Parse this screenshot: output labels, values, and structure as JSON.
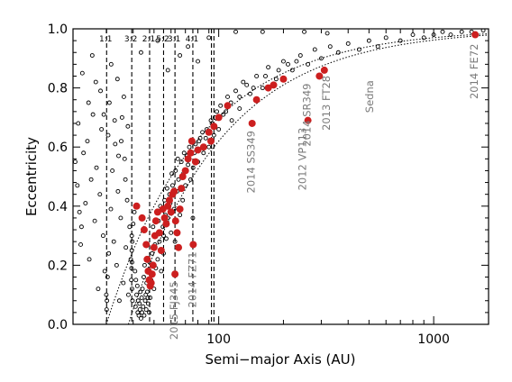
{
  "chart_data": {
    "type": "scatter",
    "title": "",
    "xlabel": "Semi−major Axis (AU)",
    "ylabel": "Eccentricity",
    "xscale": "log",
    "xlim": [
      21,
      1800
    ],
    "ylim": [
      0.0,
      1.0
    ],
    "xticks": [
      {
        "value": 100,
        "label": "100"
      },
      {
        "value": 1000,
        "label": "1000"
      }
    ],
    "yticks": [
      {
        "value": 0.0,
        "label": "0.0"
      },
      {
        "value": 0.2,
        "label": "0.2"
      },
      {
        "value": 0.4,
        "label": "0.4"
      },
      {
        "value": 0.6,
        "label": "0.6"
      },
      {
        "value": 0.8,
        "label": "0.8"
      },
      {
        "value": 1.0,
        "label": "1.0"
      }
    ],
    "grid": false,
    "colors": {
      "highlight": "#cc1f1f",
      "labels": "#7a7a7a",
      "background_points": "#000000"
    },
    "resonances": [
      {
        "label": "1:1",
        "a": 30.1
      },
      {
        "label": "3:2",
        "a": 39.4
      },
      {
        "label": "2:1",
        "a": 47.7
      },
      {
        "label": "5:2",
        "a": 55.4
      },
      {
        "label": "3:1",
        "a": 62.6
      },
      {
        "label": "4:1",
        "a": 75.8
      },
      {
        "label": "",
        "a": 92.5
      },
      {
        "label": "",
        "a": 95.0
      }
    ],
    "perihelion_curves": [
      {
        "q": 30,
        "style": "dotted"
      },
      {
        "q": 38,
        "style": "dotted"
      }
    ],
    "labeled_objects": [
      {
        "name": "2015 FJ345",
        "a": 62.6,
        "e": 0.17
      },
      {
        "name": "2014 FZ71",
        "a": 76.1,
        "e": 0.27
      },
      {
        "name": "2014 SS349",
        "a": 143,
        "e": 0.68
      },
      {
        "name": "2012 VP113",
        "a": 260,
        "e": 0.69
      },
      {
        "name": "2014 SR349",
        "a": 294,
        "e": 0.84
      },
      {
        "name": "2013 FT28",
        "a": 310,
        "e": 0.86
      },
      {
        "name": "Sedna",
        "a": 507,
        "e": 0.85
      },
      {
        "name": "2014 FE72",
        "a": 1560,
        "e": 0.98
      }
    ],
    "series": [
      {
        "style": "red filled",
        "points": [
          [
            41.5,
            0.4
          ],
          [
            44,
            0.36
          ],
          [
            45,
            0.32
          ],
          [
            46,
            0.27
          ],
          [
            46.5,
            0.22
          ],
          [
            47,
            0.18
          ],
          [
            47.5,
            0.15
          ],
          [
            48,
            0.13
          ],
          [
            48.5,
            0.14
          ],
          [
            49,
            0.17
          ],
          [
            49.5,
            0.2
          ],
          [
            50,
            0.26
          ],
          [
            50.5,
            0.3
          ],
          [
            51,
            0.35
          ],
          [
            52,
            0.38
          ],
          [
            53,
            0.31
          ],
          [
            54,
            0.25
          ],
          [
            55,
            0.39
          ],
          [
            56,
            0.36
          ],
          [
            57,
            0.34
          ],
          [
            58,
            0.4
          ],
          [
            59,
            0.42
          ],
          [
            60,
            0.38
          ],
          [
            61,
            0.44
          ],
          [
            62,
            0.45
          ],
          [
            62.6,
            0.17
          ],
          [
            63,
            0.35
          ],
          [
            64,
            0.31
          ],
          [
            65,
            0.26
          ],
          [
            66,
            0.39
          ],
          [
            67,
            0.46
          ],
          [
            68,
            0.5
          ],
          [
            70,
            0.52
          ],
          [
            72,
            0.56
          ],
          [
            74,
            0.58
          ],
          [
            75,
            0.62
          ],
          [
            76.1,
            0.27
          ],
          [
            78,
            0.55
          ],
          [
            80,
            0.59
          ],
          [
            85,
            0.6
          ],
          [
            90,
            0.65
          ],
          [
            92,
            0.62
          ],
          [
            95,
            0.67
          ],
          [
            100,
            0.7
          ],
          [
            110,
            0.74
          ],
          [
            143,
            0.68
          ],
          [
            150,
            0.76
          ],
          [
            170,
            0.8
          ],
          [
            180,
            0.81
          ],
          [
            200,
            0.83
          ],
          [
            260,
            0.69
          ],
          [
            294,
            0.84
          ],
          [
            310,
            0.86
          ],
          [
            1560,
            0.98
          ]
        ]
      },
      {
        "style": "black open",
        "points": [
          [
            21.5,
            0.55
          ],
          [
            22,
            0.47
          ],
          [
            22.5,
            0.38
          ],
          [
            22.8,
            0.27
          ],
          [
            23,
            0.33
          ],
          [
            23.5,
            0.58
          ],
          [
            24,
            0.41
          ],
          [
            24.5,
            0.62
          ],
          [
            25,
            0.22
          ],
          [
            25.5,
            0.49
          ],
          [
            26,
            0.71
          ],
          [
            26.5,
            0.35
          ],
          [
            27,
            0.53
          ],
          [
            27.5,
            0.12
          ],
          [
            28,
            0.44
          ],
          [
            28.5,
            0.66
          ],
          [
            29,
            0.3
          ],
          [
            29.5,
            0.18
          ],
          [
            30,
            0.1
          ],
          [
            30.1,
            0.05
          ],
          [
            30.2,
            0.08
          ],
          [
            30.4,
            0.16
          ],
          [
            30.8,
            0.24
          ],
          [
            31,
            0.75
          ],
          [
            31.5,
            0.39
          ],
          [
            32,
            0.52
          ],
          [
            32.5,
            0.28
          ],
          [
            33,
            0.61
          ],
          [
            33.5,
            0.2
          ],
          [
            34,
            0.45
          ],
          [
            34.5,
            0.08
          ],
          [
            35,
            0.36
          ],
          [
            35.5,
            0.7
          ],
          [
            36,
            0.14
          ],
          [
            36.5,
            0.56
          ],
          [
            37,
            0.26
          ],
          [
            37.5,
            0.42
          ],
          [
            38,
            0.1
          ],
          [
            38.5,
            0.33
          ],
          [
            39,
            0.22
          ],
          [
            39.2,
            0.15
          ],
          [
            39.3,
            0.19
          ],
          [
            39.4,
            0.25
          ],
          [
            39.4,
            0.3
          ],
          [
            39.5,
            0.12
          ],
          [
            39.5,
            0.21
          ],
          [
            39.6,
            0.28
          ],
          [
            39.7,
            0.08
          ],
          [
            40,
            0.34
          ],
          [
            40.5,
            0.38
          ],
          [
            41,
            0.06
          ],
          [
            41.5,
            0.1
          ],
          [
            42,
            0.04
          ],
          [
            42.5,
            0.03
          ],
          [
            43,
            0.05
          ],
          [
            43.5,
            0.02
          ],
          [
            44,
            0.04
          ],
          [
            44.5,
            0.06
          ],
          [
            45,
            0.03
          ],
          [
            45.5,
            0.08
          ],
          [
            46,
            0.05
          ],
          [
            46.5,
            0.11
          ],
          [
            47,
            0.07
          ],
          [
            47.5,
            0.04
          ],
          [
            47.7,
            0.13
          ],
          [
            47.7,
            0.21
          ],
          [
            48,
            0.09
          ],
          [
            48.5,
            0.15
          ],
          [
            49,
            0.24
          ],
          [
            50,
            0.12
          ],
          [
            51,
            0.19
          ],
          [
            52,
            0.22
          ],
          [
            53,
            0.28
          ],
          [
            54,
            0.18
          ],
          [
            55,
            0.33
          ],
          [
            55.4,
            0.24
          ],
          [
            55.4,
            0.3
          ],
          [
            56,
            0.42
          ],
          [
            57,
            0.29
          ],
          [
            58,
            0.36
          ],
          [
            59,
            0.44
          ],
          [
            60,
            0.31
          ],
          [
            61,
            0.47
          ],
          [
            62,
            0.39
          ],
          [
            62.6,
            0.28
          ],
          [
            63,
            0.52
          ],
          [
            64,
            0.45
          ],
          [
            65,
            0.49
          ],
          [
            66,
            0.37
          ],
          [
            67,
            0.55
          ],
          [
            68,
            0.42
          ],
          [
            69,
            0.58
          ],
          [
            70,
            0.47
          ],
          [
            72,
            0.54
          ],
          [
            74,
            0.49
          ],
          [
            75.8,
            0.36
          ],
          [
            76,
            0.53
          ],
          [
            78,
            0.61
          ],
          [
            80,
            0.55
          ],
          [
            82,
            0.63
          ],
          [
            85,
            0.58
          ],
          [
            88,
            0.66
          ],
          [
            90,
            0.6
          ],
          [
            92,
            0.69
          ],
          [
            95,
            0.64
          ],
          [
            98,
            0.72
          ],
          [
            100,
            0.66
          ],
          [
            105,
            0.71
          ],
          [
            110,
            0.77
          ],
          [
            115,
            0.69
          ],
          [
            120,
            0.79
          ],
          [
            125,
            0.73
          ],
          [
            130,
            0.82
          ],
          [
            140,
            0.78
          ],
          [
            150,
            0.84
          ],
          [
            160,
            0.8
          ],
          [
            170,
            0.87
          ],
          [
            185,
            0.83
          ],
          [
            200,
            0.89
          ],
          [
            220,
            0.86
          ],
          [
            240,
            0.91
          ],
          [
            260,
            0.88
          ],
          [
            280,
            0.93
          ],
          [
            300,
            0.9
          ],
          [
            330,
            0.94
          ],
          [
            360,
            0.92
          ],
          [
            400,
            0.95
          ],
          [
            450,
            0.93
          ],
          [
            500,
            0.96
          ],
          [
            550,
            0.94
          ],
          [
            600,
            0.97
          ],
          [
            700,
            0.96
          ],
          [
            800,
            0.98
          ],
          [
            900,
            0.97
          ],
          [
            1000,
            0.98
          ],
          [
            1100,
            0.99
          ],
          [
            1200,
            0.98
          ],
          [
            1350,
            0.99
          ],
          [
            1500,
            0.99
          ],
          [
            1700,
            0.995
          ],
          [
            23.2,
            0.85
          ],
          [
            25.8,
            0.91
          ],
          [
            28.2,
            0.79
          ],
          [
            31.6,
            0.88
          ],
          [
            33.8,
            0.83
          ],
          [
            36.2,
            0.77
          ],
          [
            43.5,
            0.92
          ],
          [
            52,
            0.96
          ],
          [
            58,
            0.86
          ],
          [
            66,
            0.91
          ],
          [
            72,
            0.94
          ],
          [
            80,
            0.89
          ],
          [
            90,
            0.97
          ],
          [
            120,
            0.99
          ],
          [
            160,
            0.99
          ],
          [
            250,
            0.99
          ],
          [
            320,
            0.985
          ],
          [
            34.2,
            0.57
          ],
          [
            36.8,
            0.49
          ],
          [
            41.8,
            0.13
          ],
          [
            43.2,
            0.11
          ],
          [
            44.8,
            0.16
          ],
          [
            45.2,
            0.2
          ],
          [
            46.2,
            0.14
          ],
          [
            49.5,
            0.33
          ],
          [
            50.5,
            0.27
          ],
          [
            52.5,
            0.35
          ],
          [
            53.5,
            0.4
          ],
          [
            56.5,
            0.37
          ],
          [
            57.5,
            0.46
          ],
          [
            59.5,
            0.41
          ],
          [
            60.5,
            0.51
          ],
          [
            64.5,
            0.56
          ],
          [
            68.5,
            0.51
          ],
          [
            71,
            0.57
          ],
          [
            73,
            0.6
          ],
          [
            77,
            0.58
          ],
          [
            81,
            0.62
          ],
          [
            84,
            0.65
          ],
          [
            87,
            0.63
          ],
          [
            93,
            0.68
          ],
          [
            96,
            0.7
          ],
          [
            102,
            0.74
          ],
          [
            108,
            0.72
          ],
          [
            114,
            0.75
          ],
          [
            125,
            0.77
          ],
          [
            135,
            0.81
          ],
          [
            145,
            0.8
          ],
          [
            165,
            0.84
          ],
          [
            190,
            0.86
          ],
          [
            210,
            0.88
          ],
          [
            230,
            0.89
          ],
          [
            42.2,
            0.08
          ],
          [
            42.8,
            0.07
          ],
          [
            43.8,
            0.09
          ],
          [
            44.2,
            0.12
          ],
          [
            45.8,
            0.1
          ],
          [
            46.8,
            0.09
          ],
          [
            41.2,
            0.15
          ],
          [
            40.8,
            0.18
          ],
          [
            22.2,
            0.68
          ],
          [
            24.8,
            0.75
          ],
          [
            26.8,
            0.82
          ],
          [
            29.2,
            0.71
          ],
          [
            30.6,
            0.64
          ],
          [
            32.8,
            0.69
          ],
          [
            35.2,
            0.62
          ],
          [
            37.8,
            0.67
          ]
        ]
      }
    ]
  }
}
